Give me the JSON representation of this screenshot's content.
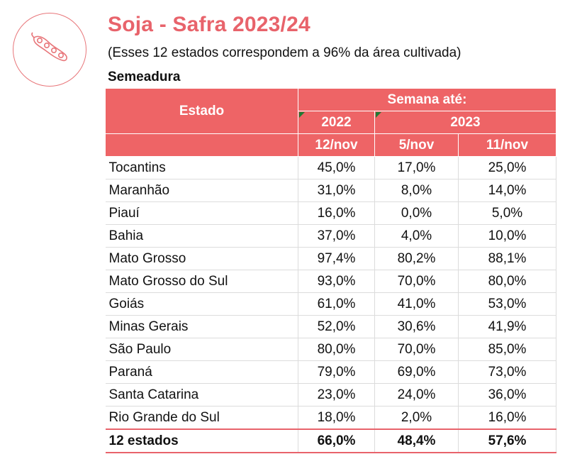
{
  "title": "Soja - Safra 2023/24",
  "subtitle": "(Esses 12 estados correspondem a 96% da área cultivada)",
  "section": "Semeadura",
  "logo_icon": "soybean-pod-icon",
  "colors": {
    "accent": "#ee6466",
    "title": "#e8636b",
    "flag": "#1e7b34"
  },
  "table": {
    "col_state": "Estado",
    "col_group": "Semana até:",
    "years": [
      "2022",
      "2023"
    ],
    "weeks": [
      "12/nov",
      "5/nov",
      "11/nov"
    ],
    "rows": [
      {
        "state": "Tocantins",
        "v": [
          "45,0%",
          "17,0%",
          "25,0%"
        ]
      },
      {
        "state": "Maranhão",
        "v": [
          "31,0%",
          "8,0%",
          "14,0%"
        ]
      },
      {
        "state": "Piauí",
        "v": [
          "16,0%",
          "0,0%",
          "5,0%"
        ]
      },
      {
        "state": "Bahia",
        "v": [
          "37,0%",
          "4,0%",
          "10,0%"
        ]
      },
      {
        "state": "Mato Grosso",
        "v": [
          "97,4%",
          "80,2%",
          "88,1%"
        ]
      },
      {
        "state": "Mato Grosso do Sul",
        "v": [
          "93,0%",
          "70,0%",
          "80,0%"
        ]
      },
      {
        "state": "Goiás",
        "v": [
          "61,0%",
          "41,0%",
          "53,0%"
        ]
      },
      {
        "state": "Minas Gerais",
        "v": [
          "52,0%",
          "30,6%",
          "41,9%"
        ]
      },
      {
        "state": "São Paulo",
        "v": [
          "80,0%",
          "70,0%",
          "85,0%"
        ]
      },
      {
        "state": "Paraná",
        "v": [
          "79,0%",
          "69,0%",
          "73,0%"
        ]
      },
      {
        "state": "Santa Catarina",
        "v": [
          "23,0%",
          "24,0%",
          "36,0%"
        ]
      },
      {
        "state": "Rio Grande do Sul",
        "v": [
          "18,0%",
          "2,0%",
          "16,0%"
        ]
      }
    ],
    "total": {
      "state": "12 estados",
      "v": [
        "66,0%",
        "48,4%",
        "57,6%"
      ]
    }
  }
}
